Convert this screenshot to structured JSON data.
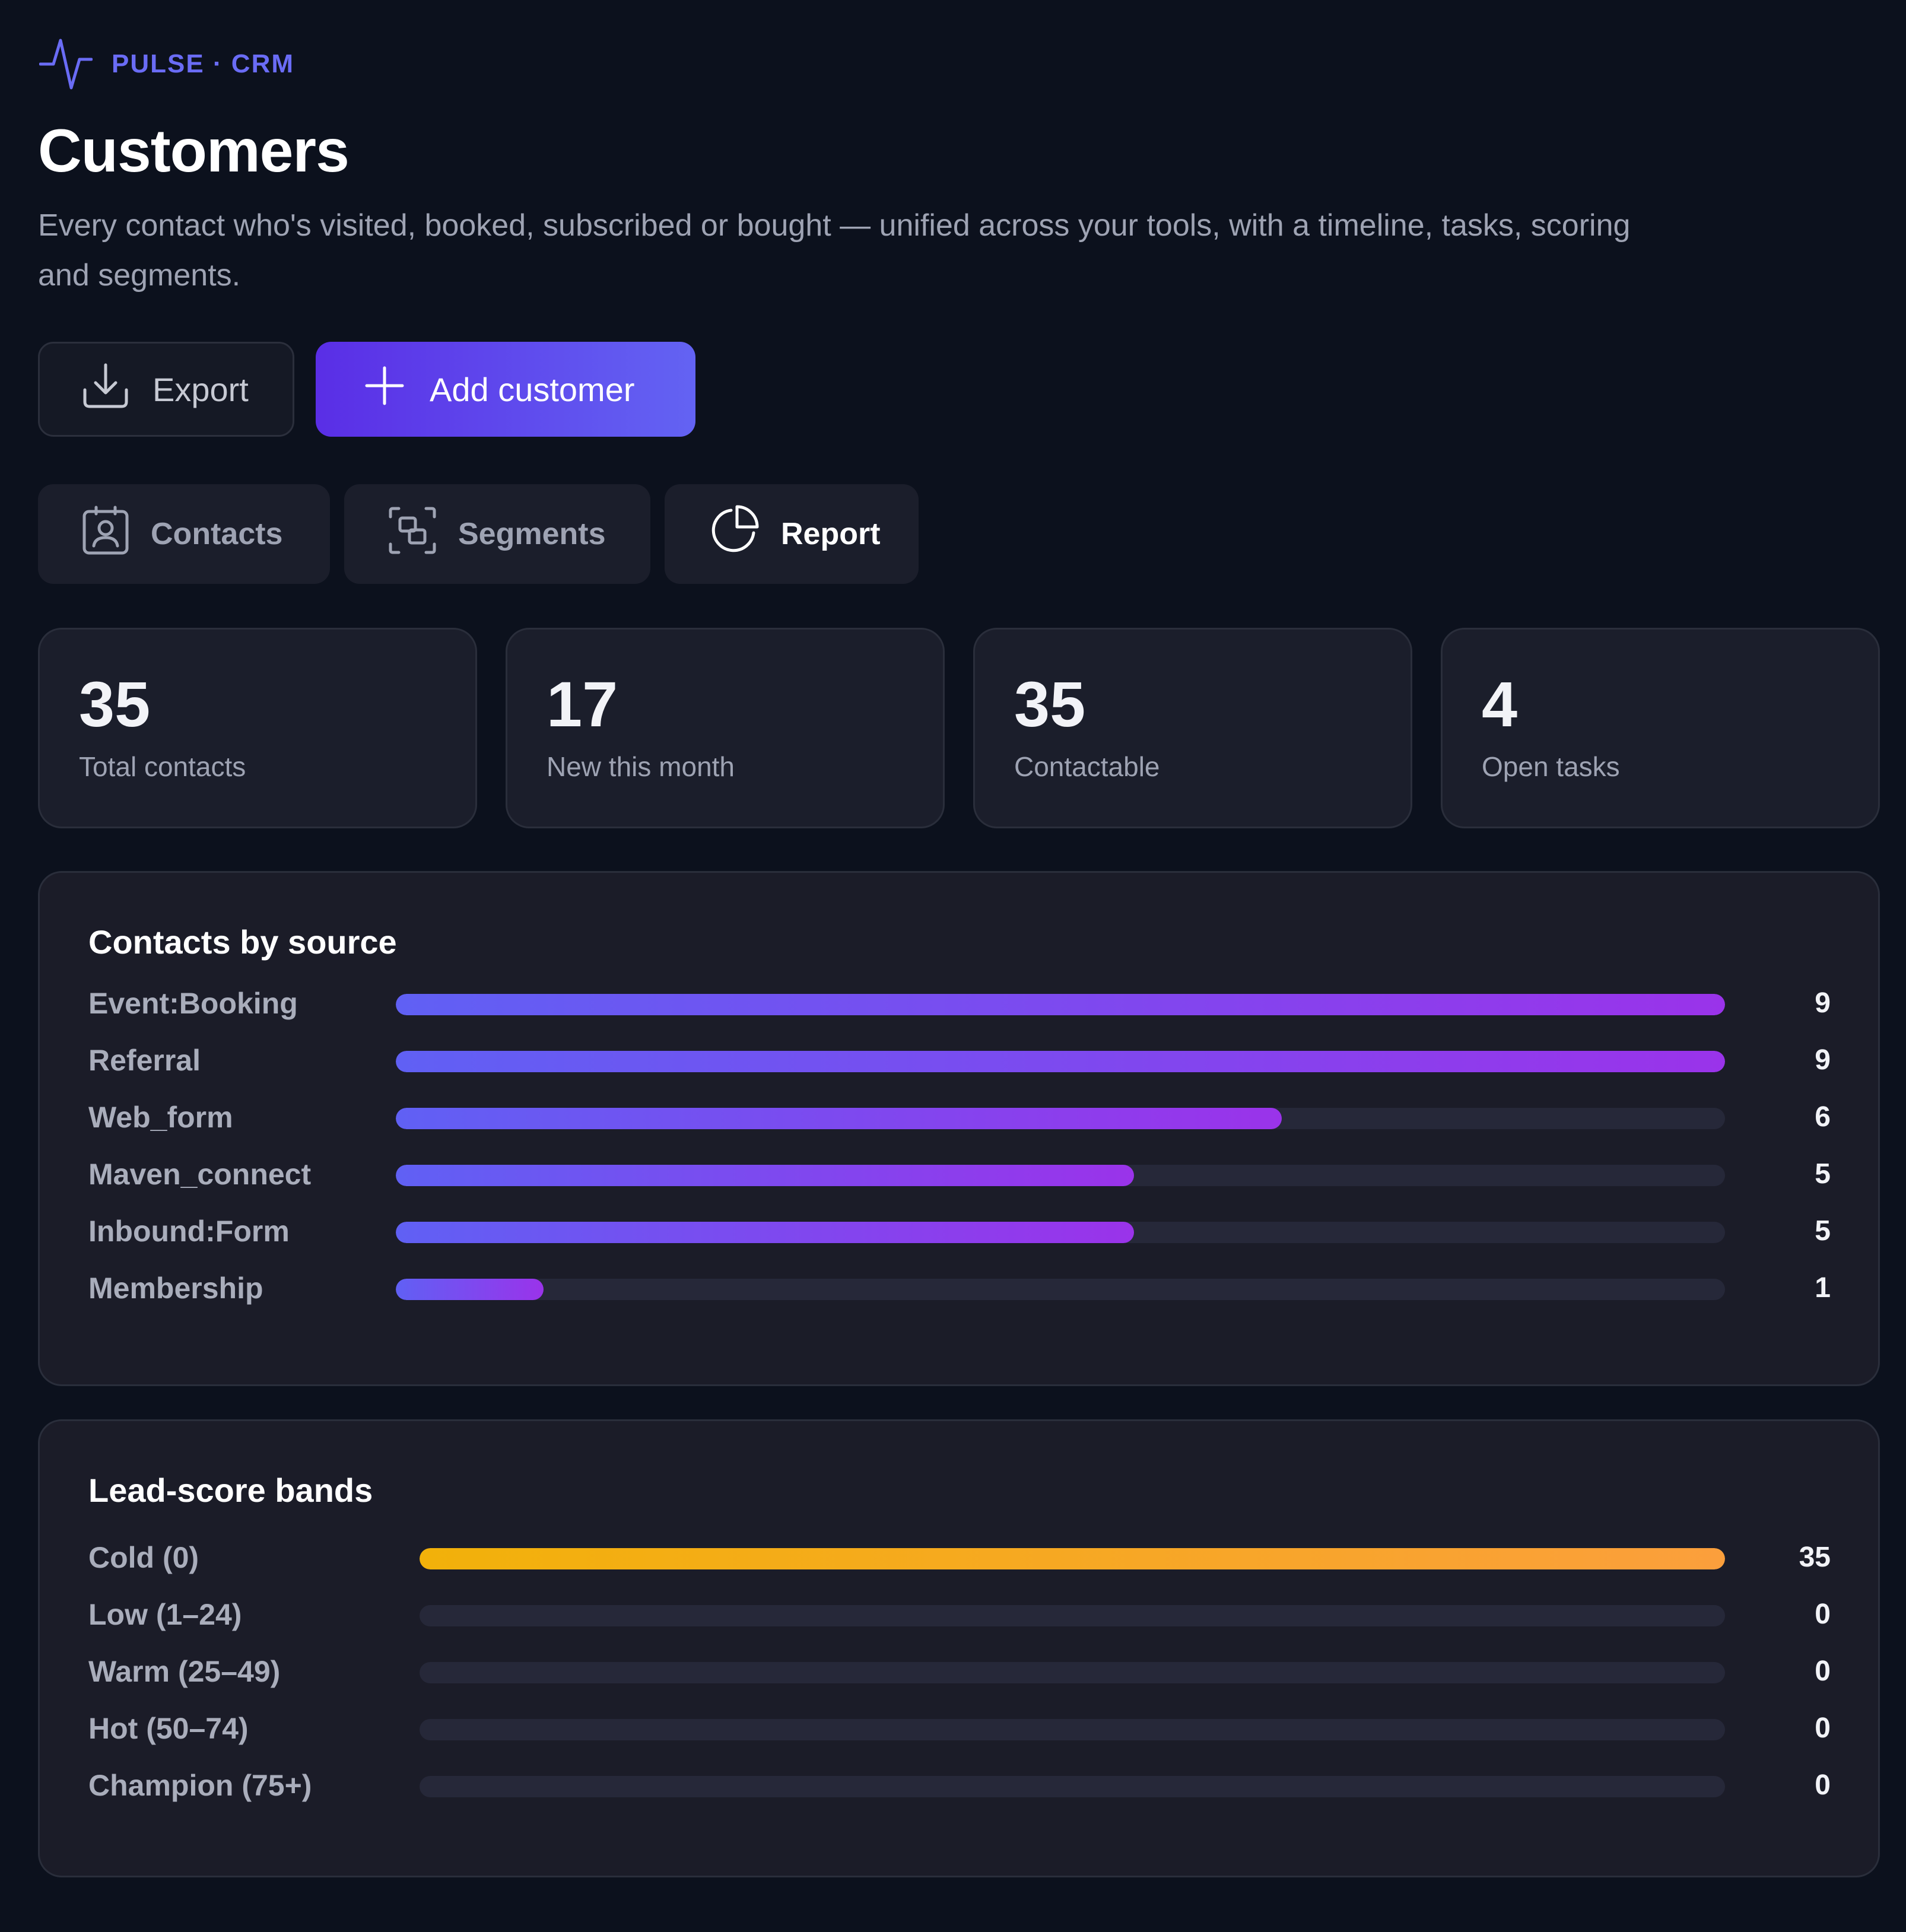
{
  "brand": {
    "name": "PULSE · CRM",
    "icon": "pulse-icon",
    "color": "#6a6cf5"
  },
  "header": {
    "title": "Customers",
    "subtitle": "Every contact who's visited, booked, subscribed or bought — unified across your tools, with a timeline, tasks, scoring and segments."
  },
  "actions": {
    "export_label": "Export",
    "export_icon": "download-icon",
    "add_label": "Add customer",
    "add_icon": "plus-icon"
  },
  "tabs": [
    {
      "label": "Contacts",
      "icon": "contact-card-icon"
    },
    {
      "label": "Segments",
      "icon": "segments-icon"
    },
    {
      "label": "Report",
      "icon": "pie-chart-icon",
      "active": true
    }
  ],
  "stats": [
    {
      "value": "35",
      "label": "Total contacts"
    },
    {
      "value": "17",
      "label": "New this month"
    },
    {
      "value": "35",
      "label": "Contactable"
    },
    {
      "value": "4",
      "label": "Open tasks"
    }
  ],
  "chart_data": [
    {
      "type": "bar",
      "title": "Contacts by source",
      "categories": [
        "Event:Booking",
        "Referral",
        "Web_form",
        "Maven_connect",
        "Inbound:Form",
        "Membership"
      ],
      "values": [
        9,
        9,
        6,
        5,
        5,
        1
      ],
      "max": 9,
      "color": "#7a4cf0"
    },
    {
      "type": "bar",
      "title": "Lead-score bands",
      "categories": [
        "Cold (0)",
        "Low (1–24)",
        "Warm (25–49)",
        "Hot (50–74)",
        "Champion (75+)"
      ],
      "values": [
        35,
        0,
        0,
        0,
        0
      ],
      "max": 35,
      "color": "#f5a623"
    }
  ]
}
